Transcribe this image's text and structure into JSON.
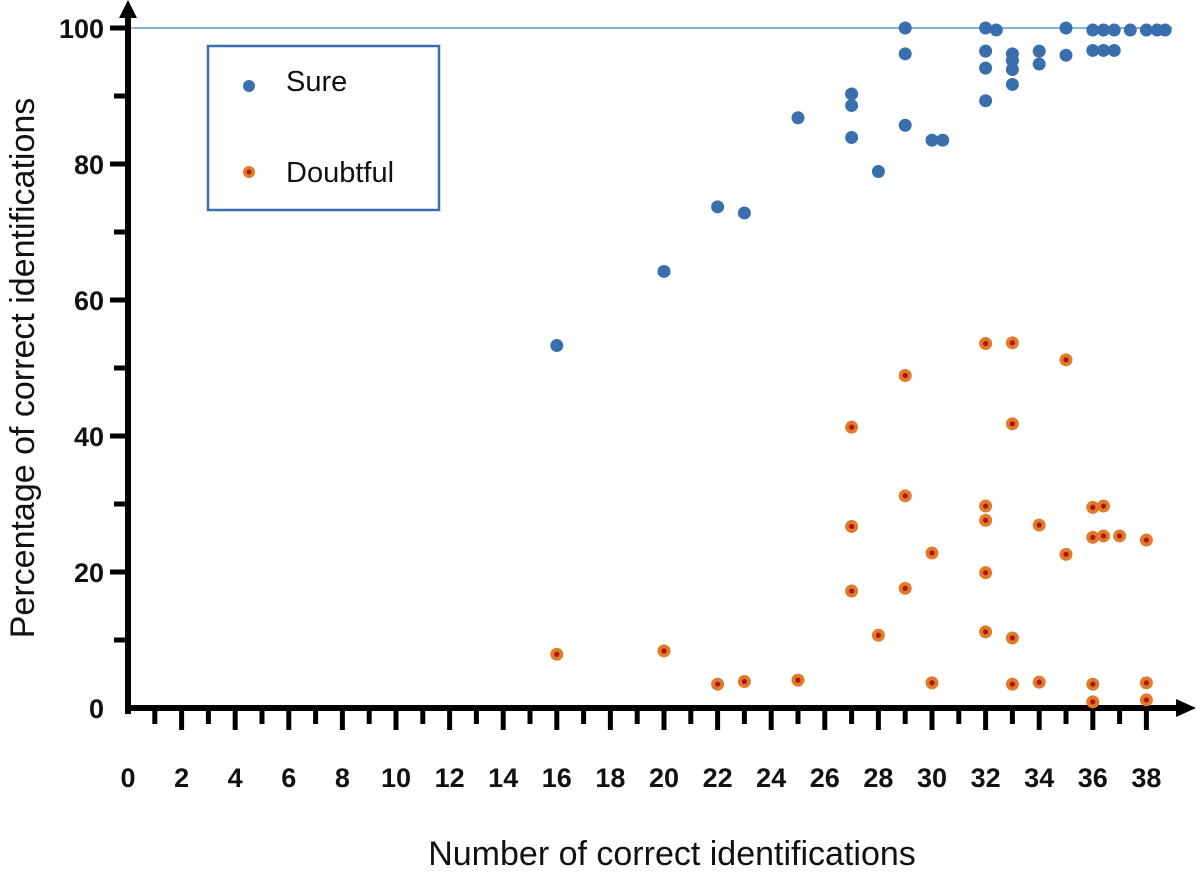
{
  "chart_data": {
    "type": "scatter",
    "xlabel": "Number of correct identifications",
    "ylabel": "Percentage of correct identifications",
    "xlim": [
      0,
      39
    ],
    "ylim": [
      0,
      100
    ],
    "x_ticks": [
      "0",
      "2",
      "4",
      "6",
      "8",
      "10",
      "12",
      "14",
      "16",
      "18",
      "20",
      "22",
      "24",
      "26",
      "28",
      "30",
      "32",
      "34",
      "36",
      "38"
    ],
    "y_ticks": [
      "0",
      "20",
      "40",
      "60",
      "80",
      "100"
    ],
    "reference_line": 100,
    "legend": {
      "position": "top-left"
    },
    "series": [
      {
        "name": "Sure",
        "color": "#3a6fae",
        "points": [
          [
            16,
            53.3
          ],
          [
            20,
            64.2
          ],
          [
            22,
            73.7
          ],
          [
            23,
            72.8
          ],
          [
            25,
            86.8
          ],
          [
            27,
            90.3
          ],
          [
            27,
            88.6
          ],
          [
            27,
            83.9
          ],
          [
            28,
            78.9
          ],
          [
            29,
            100
          ],
          [
            29,
            96.2
          ],
          [
            29,
            85.7
          ],
          [
            30,
            83.5
          ],
          [
            30.4,
            83.5
          ],
          [
            32,
            100
          ],
          [
            32.4,
            99.7
          ],
          [
            32,
            96.6
          ],
          [
            32,
            94.1
          ],
          [
            32,
            89.3
          ],
          [
            33,
            96.2
          ],
          [
            33,
            95.2
          ],
          [
            33,
            93.9
          ],
          [
            33,
            91.7
          ],
          [
            34,
            96.6
          ],
          [
            34,
            94.7
          ],
          [
            35,
            100
          ],
          [
            35,
            96
          ],
          [
            36,
            99.7
          ],
          [
            36.4,
            99.7
          ],
          [
            36.8,
            99.7
          ],
          [
            37.4,
            99.7
          ],
          [
            36,
            96.7
          ],
          [
            36.4,
            96.7
          ],
          [
            36.8,
            96.7
          ],
          [
            38,
            99.7
          ],
          [
            38.4,
            99.7
          ],
          [
            38.7,
            99.7
          ]
        ]
      },
      {
        "name": "Doubtful",
        "color": "#e07b2a",
        "points": [
          [
            16,
            7.9
          ],
          [
            20,
            8.4
          ],
          [
            22,
            3.5
          ],
          [
            23,
            3.9
          ],
          [
            25,
            4.1
          ],
          [
            27,
            41.3
          ],
          [
            27,
            26.7
          ],
          [
            27,
            17.2
          ],
          [
            28,
            10.7
          ],
          [
            29,
            48.9
          ],
          [
            29,
            31.2
          ],
          [
            29,
            17.6
          ],
          [
            30,
            22.8
          ],
          [
            30,
            3.7
          ],
          [
            32,
            53.6
          ],
          [
            32,
            29.7
          ],
          [
            32,
            27.6
          ],
          [
            32,
            19.9
          ],
          [
            32,
            11.2
          ],
          [
            33,
            53.7
          ],
          [
            33,
            41.8
          ],
          [
            33,
            10.3
          ],
          [
            33,
            3.5
          ],
          [
            34,
            26.9
          ],
          [
            34,
            3.8
          ],
          [
            35,
            51.2
          ],
          [
            35,
            22.6
          ],
          [
            36,
            29.5
          ],
          [
            36.4,
            29.7
          ],
          [
            36,
            25.1
          ],
          [
            36.4,
            25.3
          ],
          [
            37,
            25.3
          ],
          [
            38,
            24.7
          ],
          [
            36,
            3.5
          ],
          [
            36,
            0.9
          ],
          [
            38,
            3.7
          ],
          [
            38,
            1.2
          ]
        ]
      }
    ]
  }
}
